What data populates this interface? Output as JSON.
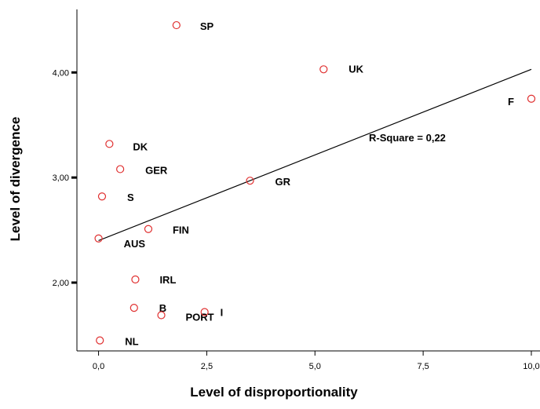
{
  "chart_data": {
    "type": "scatter",
    "xlabel": "Level of disproportionality",
    "ylabel": "Level of divergence",
    "xlim": [
      -0.5,
      10.2
    ],
    "ylim": [
      1.35,
      4.6
    ],
    "xticks": [
      0.0,
      2.5,
      5.0,
      7.5,
      10.0
    ],
    "xtick_labels": [
      "0,0",
      "2,5",
      "5,0",
      "7,5",
      "10,0"
    ],
    "yticks": [
      2.0,
      3.0,
      4.0
    ],
    "ytick_labels": [
      "2,00",
      "3,00",
      "4,00"
    ],
    "grid": false,
    "points": [
      {
        "label": "SP",
        "x": 1.8,
        "y": 4.45
      },
      {
        "label": "UK",
        "x": 5.2,
        "y": 4.03
      },
      {
        "label": "F",
        "x": 10.0,
        "y": 3.75
      },
      {
        "label": "DK",
        "x": 0.25,
        "y": 3.32
      },
      {
        "label": "GER",
        "x": 0.5,
        "y": 3.08
      },
      {
        "label": "GR",
        "x": 3.5,
        "y": 2.97
      },
      {
        "label": "S",
        "x": 0.08,
        "y": 2.82
      },
      {
        "label": "FIN",
        "x": 1.15,
        "y": 2.51
      },
      {
        "label": "AUS",
        "x": 0.0,
        "y": 2.42
      },
      {
        "label": "IRL",
        "x": 0.85,
        "y": 2.03
      },
      {
        "label": "B",
        "x": 0.82,
        "y": 1.76
      },
      {
        "label": "PORT",
        "x": 1.45,
        "y": 1.69
      },
      {
        "label": "I",
        "x": 2.45,
        "y": 1.72
      },
      {
        "label": "NL",
        "x": 0.03,
        "y": 1.45
      }
    ],
    "fit_line": {
      "x": [
        0.0,
        10.0
      ],
      "y": [
        2.4,
        4.03
      ]
    },
    "annotation": "R-Square = 0,22",
    "marker_color": "#e03030",
    "line_color": "#000000"
  }
}
